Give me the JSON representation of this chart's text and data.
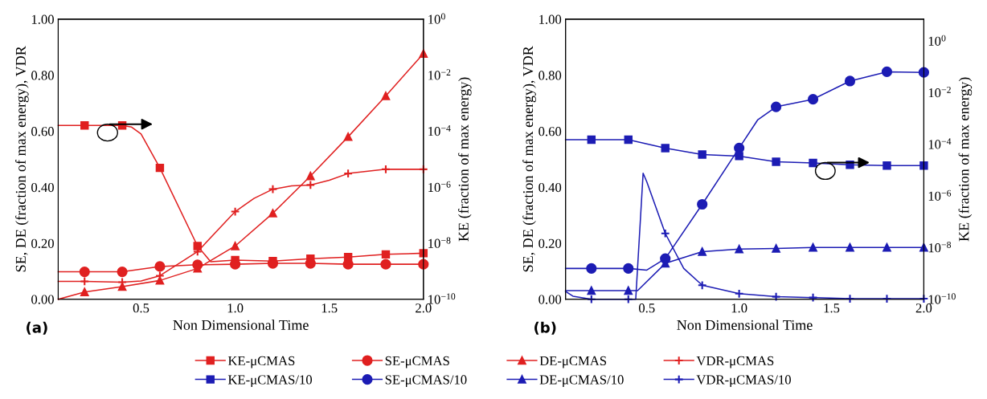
{
  "chart_data": [
    {
      "type": "line",
      "xlabel": "Non Dimensional Time",
      "ylabel": "SE, DE (fraction of max energy), VDR",
      "y2label": "KE (fraction of max energy)",
      "annotations": [
        "(a)"
      ],
      "xlim": [
        0.06,
        2.0
      ],
      "xticks": [
        {
          "value": 0.5,
          "label": "0.5"
        },
        {
          "value": 1.0,
          "label": "1.0"
        },
        {
          "value": 1.5,
          "label": "1.5"
        },
        {
          "value": 2.0,
          "label": "2.0"
        }
      ],
      "ylim": [
        0,
        1.0
      ],
      "yticks": [
        {
          "value": 0,
          "label": "0.00"
        },
        {
          "value": 0.2,
          "label": "0.20"
        },
        {
          "value": 0.4,
          "label": "0.40"
        },
        {
          "value": 0.6,
          "label": "0.60"
        },
        {
          "value": 0.8,
          "label": "0.80"
        },
        {
          "value": 1.0,
          "label": "1.00"
        }
      ],
      "log": "y2",
      "y2lim": [
        1e-10,
        1
      ],
      "y2ticks": [
        {
          "value": 1e-10,
          "label": "10$^{−10}$"
        },
        {
          "value": 1e-08,
          "label": "10$^{−8}$"
        },
        {
          "value": 1e-06,
          "label": "10$^{−6}$"
        },
        {
          "value": 0.0001,
          "label": "10$^{−4}$"
        },
        {
          "value": 0.01,
          "label": "10$^{−2}$"
        },
        {
          "value": 1,
          "label": "10$^{0}$"
        }
      ],
      "grid": false,
      "legend": "bottom",
      "line_style": "solid",
      "series": [
        {
          "name": "KE-μCMAS",
          "color": "#e02020",
          "marker": "square",
          "axis": "y2",
          "x": [
            0.06,
            0.2,
            0.4,
            0.45,
            0.5,
            0.6,
            0.8,
            0.87,
            1.0,
            1.2,
            1.4,
            1.6,
            1.8,
            2.0
          ],
          "values": [
            0.00016,
            0.00016,
            0.00016,
            0.00014,
            7.9e-05,
            4.9e-06,
            7.9e-09,
            2.2e-09,
            2.5e-09,
            2.3e-09,
            2.8e-09,
            3.2e-09,
            4e-09,
            4.4e-09
          ]
        },
        {
          "name": "SE-μCMAS",
          "color": "#e02020",
          "marker": "circle",
          "x": [
            0.06,
            0.2,
            0.4,
            0.6,
            0.8,
            1.0,
            1.2,
            1.4,
            1.6,
            1.8,
            2.0
          ],
          "values": [
            0.098,
            0.098,
            0.098,
            0.117,
            0.123,
            0.125,
            0.128,
            0.128,
            0.125,
            0.125,
            0.125
          ]
        },
        {
          "name": "DE-μCMAS",
          "color": "#e02020",
          "marker": "triangle",
          "x": [
            0.06,
            0.2,
            0.4,
            0.6,
            0.8,
            1.0,
            1.2,
            1.4,
            1.6,
            1.8,
            2.0
          ],
          "values": [
            0.0,
            0.026,
            0.045,
            0.067,
            0.11,
            0.19,
            0.307,
            0.44,
            0.58,
            0.726,
            0.877
          ]
        },
        {
          "name": "VDR-μCMAS",
          "color": "#e02020",
          "marker": "cross",
          "x": [
            0.06,
            0.2,
            0.4,
            0.5,
            0.6,
            0.8,
            1.0,
            1.1,
            1.2,
            1.3,
            1.4,
            1.5,
            1.6,
            1.8,
            2.0
          ],
          "values": [
            0.064,
            0.064,
            0.061,
            0.065,
            0.084,
            0.17,
            0.313,
            0.36,
            0.393,
            0.405,
            0.408,
            0.425,
            0.449,
            0.464,
            0.464
          ]
        }
      ]
    },
    {
      "type": "line",
      "xlabel": "Non Dimensional Time",
      "ylabel": "SE, DE (fraction of max energy), VDR",
      "y2label": "KE (fraction of max energy)",
      "annotations": [
        "(b)"
      ],
      "xlim": [
        0.06,
        2.0
      ],
      "xticks": [
        {
          "value": 0.5,
          "label": "0.5"
        },
        {
          "value": 1.0,
          "label": "1.0"
        },
        {
          "value": 1.5,
          "label": "1.5"
        },
        {
          "value": 2.0,
          "label": "2.0"
        }
      ],
      "ylim": [
        0,
        1.0
      ],
      "yticks": [
        {
          "value": 0,
          "label": "0.00"
        },
        {
          "value": 0.2,
          "label": "0.20"
        },
        {
          "value": 0.4,
          "label": "0.40"
        },
        {
          "value": 0.6,
          "label": "0.60"
        },
        {
          "value": 0.8,
          "label": "0.80"
        },
        {
          "value": 1.0,
          "label": "1.00"
        }
      ],
      "log": "y2",
      "y2lim": [
        1e-10,
        7
      ],
      "y2ticks": [
        {
          "value": 1e-10,
          "label": "10$^{−10}$"
        },
        {
          "value": 1e-08,
          "label": "10$^{−8}$"
        },
        {
          "value": 1e-06,
          "label": "10$^{−6}$"
        },
        {
          "value": 0.0001,
          "label": "10$^{−4}$"
        },
        {
          "value": 0.01,
          "label": "10$^{−2}$"
        },
        {
          "value": 1,
          "label": "10$^{0}$"
        }
      ],
      "grid": false,
      "legend": "bottom",
      "line_style": "solid",
      "series": [
        {
          "name": "KE-μCMAS/10",
          "color": "#1c1cb4",
          "marker": "square",
          "axis": "y2",
          "x": [
            0.06,
            0.2,
            0.4,
            0.6,
            0.8,
            1.0,
            1.2,
            1.4,
            1.6,
            1.8,
            2.0
          ],
          "values": [
            0.00015,
            0.00015,
            0.00015,
            7.1e-05,
            4e-05,
            3.5e-05,
            2.1e-05,
            1.9e-05,
            1.6e-05,
            1.5e-05,
            1.5e-05
          ]
        },
        {
          "name": "SE-μCMAS/10",
          "color": "#1c1cb4",
          "marker": "circle",
          "x": [
            0.06,
            0.2,
            0.4,
            0.5,
            0.6,
            0.8,
            1.0,
            1.1,
            1.2,
            1.4,
            1.6,
            1.8,
            2.0
          ],
          "values": [
            0.11,
            0.11,
            0.11,
            0.104,
            0.145,
            0.339,
            0.54,
            0.64,
            0.687,
            0.714,
            0.779,
            0.812,
            0.81
          ]
        },
        {
          "name": "DE-μCMAS/10",
          "color": "#1c1cb4",
          "marker": "triangle",
          "x": [
            0.06,
            0.2,
            0.4,
            0.45,
            0.6,
            0.8,
            1.0,
            1.2,
            1.4,
            1.6,
            1.8,
            2.0
          ],
          "values": [
            0.031,
            0.031,
            0.031,
            0.031,
            0.128,
            0.17,
            0.179,
            0.181,
            0.185,
            0.185,
            0.185,
            0.185
          ]
        },
        {
          "name": "VDR-μCMAS/10",
          "color": "#1c1cb4",
          "marker": "cross",
          "x": [
            0.06,
            0.1,
            0.2,
            0.4,
            0.44,
            0.48,
            0.5,
            0.6,
            0.7,
            0.8,
            1.0,
            1.2,
            1.4,
            1.6,
            1.8,
            2.0
          ],
          "values": [
            0.028,
            0.011,
            0.0,
            0.0,
            0.0,
            0.45,
            0.419,
            0.235,
            0.11,
            0.05,
            0.02,
            0.009,
            0.006,
            0.002,
            0.002,
            0.002
          ]
        }
      ]
    }
  ]
}
